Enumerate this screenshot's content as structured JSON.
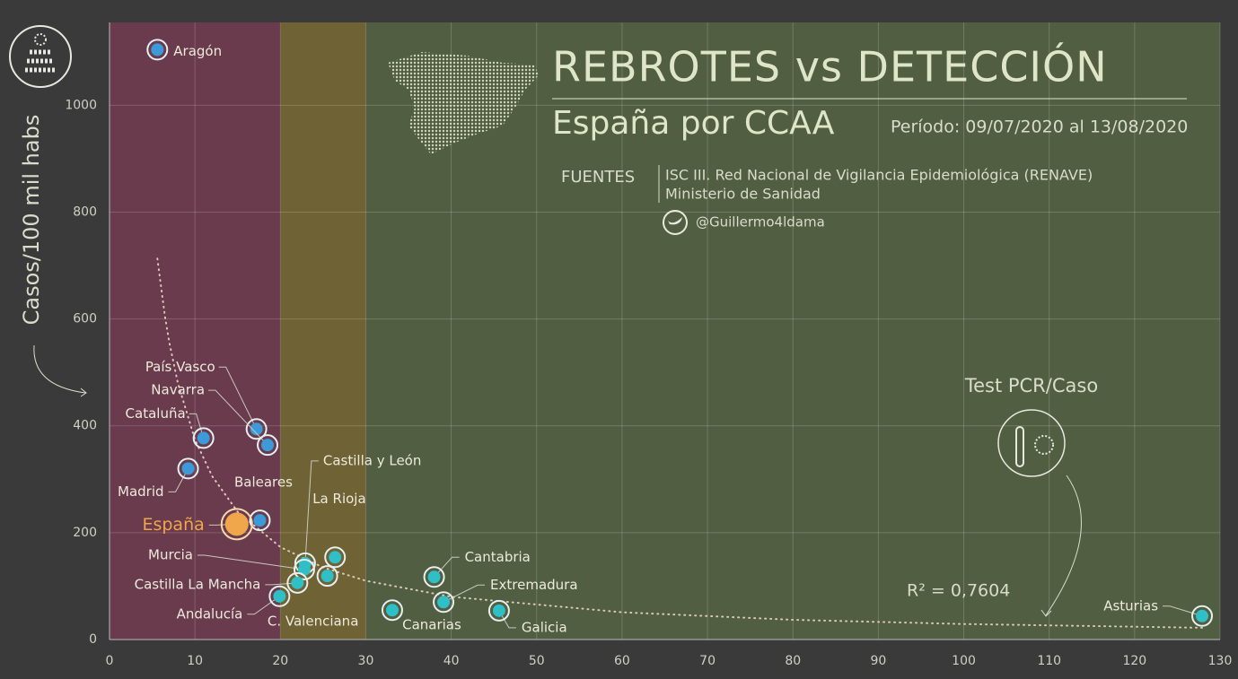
{
  "chart_data": {
    "type": "scatter",
    "title": "REBROTES vs DETECCIÓN",
    "subtitle": "España por CCAA",
    "period": "Período: 09/07/2020 al 13/08/2020",
    "sources_label": "FUENTES",
    "sources": [
      "ISC III. Red Nacional de Vigilancia Epidemiológica (RENAVE)",
      "Ministerio de Sanidad"
    ],
    "twitter": "@Guillermo4ldama",
    "ylabel": "Casos/100 mil habs",
    "xlabel": "Test PCR/Caso",
    "r2": "R² = 0,7604",
    "labels": [
      "Aragón",
      "País Vasco",
      "Navarra",
      "Cataluña",
      "Madrid",
      "Baleares",
      "España",
      "Castilla y León",
      "La Rioja",
      "Murcia",
      "Castilla La Mancha",
      "Andalucía",
      "C. Valenciana",
      "Canarias",
      "Cantabria",
      "Extremadura",
      "Galicia",
      "Asturias"
    ],
    "x": [
      5.6,
      17.2,
      18.5,
      11.0,
      9.2,
      17.6,
      14.9,
      22.9,
      26.4,
      22.8,
      22.0,
      19.9,
      25.5,
      33.1,
      38.0,
      39.1,
      45.6,
      127.9
    ],
    "values": [
      1104,
      394,
      364,
      377,
      320,
      223,
      216,
      143,
      154,
      131,
      106,
      81,
      119,
      55,
      117,
      70,
      54,
      44
    ],
    "colors": [
      "#3d9ad8",
      "#3d9ad8",
      "#3d9ad8",
      "#3d9ad8",
      "#3d9ad8",
      "#3d9ad8",
      "#f0a64a",
      "#2fbfc6",
      "#2fbfc6",
      "#2fbfc6",
      "#2fbfc6",
      "#2fbfc6",
      "#2fbfc6",
      "#2fbfc6",
      "#2fbfc6",
      "#2fbfc6",
      "#2fbfc6",
      "#2fbfc6"
    ],
    "trend": {
      "x": [
        5.6,
        6.5,
        7,
        8,
        10,
        12,
        15,
        20,
        25,
        30,
        40,
        60,
        80,
        100,
        128
      ],
      "y": [
        713,
        604,
        556,
        480,
        374,
        306,
        239,
        173,
        135,
        110,
        80,
        51,
        37,
        29,
        22
      ]
    },
    "bands": [
      {
        "from": 0,
        "to": 20,
        "color": "#6a3a4d"
      },
      {
        "from": 20,
        "to": 30,
        "color": "#6f6234"
      },
      {
        "from": 30,
        "to": 130,
        "color": "#525e42"
      }
    ],
    "xlim": [
      0,
      130
    ],
    "ylim": [
      0,
      1155
    ],
    "xticks": [
      0,
      10,
      20,
      30,
      40,
      50,
      60,
      70,
      80,
      90,
      100,
      110,
      120,
      130
    ],
    "yticks": [
      0,
      200,
      400,
      600,
      800,
      1000
    ],
    "grid": true
  }
}
